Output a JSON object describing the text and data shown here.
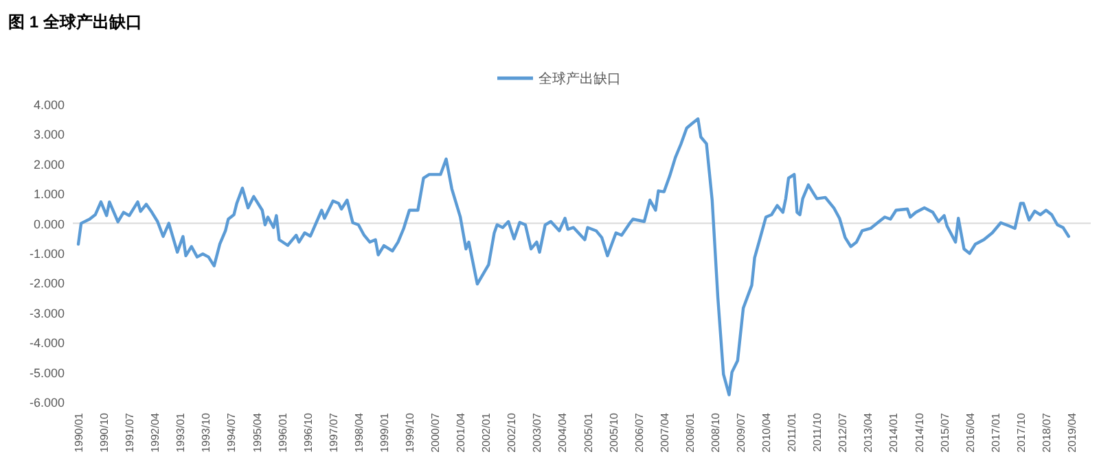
{
  "chart_data": {
    "type": "line",
    "title": "图 1  全球产出缺口",
    "legend": "top",
    "xlim": [
      "1990-01",
      "2019-04"
    ],
    "xticks": [
      {
        "value": "1990-01",
        "label": "1990/01"
      },
      {
        "value": "1990-10",
        "label": "1990/10"
      },
      {
        "value": "1991-07",
        "label": "1991/07"
      },
      {
        "value": "1992-04",
        "label": "1992/04"
      },
      {
        "value": "1993-01",
        "label": "1993/01"
      },
      {
        "value": "1993-10",
        "label": "1993/10"
      },
      {
        "value": "1994-07",
        "label": "1994/07"
      },
      {
        "value": "1995-04",
        "label": "1995/04"
      },
      {
        "value": "1996-01",
        "label": "1996/01"
      },
      {
        "value": "1996-10",
        "label": "1996/10"
      },
      {
        "value": "1997-07",
        "label": "1997/07"
      },
      {
        "value": "1998-04",
        "label": "1998/04"
      },
      {
        "value": "1999-01",
        "label": "1999/01"
      },
      {
        "value": "1999-10",
        "label": "1999/10"
      },
      {
        "value": "2000-07",
        "label": "2000/07"
      },
      {
        "value": "2001-04",
        "label": "2001/04"
      },
      {
        "value": "2002-01",
        "label": "2002/01"
      },
      {
        "value": "2002-10",
        "label": "2002/10"
      },
      {
        "value": "2003-07",
        "label": "2003/07"
      },
      {
        "value": "2004-04",
        "label": "2004/04"
      },
      {
        "value": "2005-01",
        "label": "2005/01"
      },
      {
        "value": "2005-10",
        "label": "2005/10"
      },
      {
        "value": "2006-07",
        "label": "2006/07"
      },
      {
        "value": "2007-04",
        "label": "2007/04"
      },
      {
        "value": "2008-01",
        "label": "2008/01"
      },
      {
        "value": "2008-10",
        "label": "2008/10"
      },
      {
        "value": "2009-07",
        "label": "2009/07"
      },
      {
        "value": "2010-04",
        "label": "2010/04"
      },
      {
        "value": "2011-01",
        "label": "2011/01"
      },
      {
        "value": "2011-10",
        "label": "2011/10"
      },
      {
        "value": "2012-07",
        "label": "2012/07"
      },
      {
        "value": "2013-04",
        "label": "2013/04"
      },
      {
        "value": "2014-01",
        "label": "2014/01"
      },
      {
        "value": "2014-10",
        "label": "2014/10"
      },
      {
        "value": "2015-07",
        "label": "2015/07"
      },
      {
        "value": "2016-04",
        "label": "2016/04"
      },
      {
        "value": "2017-01",
        "label": "2017/01"
      },
      {
        "value": "2017-10",
        "label": "2017/10"
      },
      {
        "value": "2018-07",
        "label": "2018/07"
      },
      {
        "value": "2019-04",
        "label": "2019/04"
      }
    ],
    "ylim": [
      -6,
      4
    ],
    "yticks": [
      {
        "value": 4,
        "label": "4.000"
      },
      {
        "value": 3,
        "label": "3.000"
      },
      {
        "value": 2,
        "label": "2.000"
      },
      {
        "value": 1,
        "label": "1.000"
      },
      {
        "value": 0,
        "label": "0.000"
      },
      {
        "value": -1,
        "label": "-1.000"
      },
      {
        "value": -2,
        "label": "-2.000"
      },
      {
        "value": -3,
        "label": "-3.000"
      },
      {
        "value": -4,
        "label": "-4.000"
      },
      {
        "value": -5,
        "label": "-5.000"
      },
      {
        "value": -6,
        "label": "-6.000"
      }
    ],
    "x": [
      "1990-01",
      "1990-02",
      "1990-05",
      "1990-07",
      "1990-09",
      "1990-11",
      "1990-12",
      "1991-03",
      "1991-05",
      "1991-07",
      "1991-10",
      "1991-11",
      "1992-01",
      "1992-03",
      "1992-05",
      "1992-07",
      "1992-09",
      "1992-12",
      "1993-02",
      "1993-03",
      "1993-05",
      "1993-07",
      "1993-09",
      "1993-11",
      "1994-01",
      "1994-03",
      "1994-05",
      "1994-06",
      "1994-08",
      "1994-09",
      "1994-11",
      "1995-01",
      "1995-03",
      "1995-06",
      "1995-07",
      "1995-08",
      "1995-10",
      "1995-11",
      "1995-12",
      "1996-03",
      "1996-06",
      "1996-07",
      "1996-09",
      "1996-11",
      "1997-03",
      "1997-04",
      "1997-07",
      "1997-09",
      "1997-10",
      "1997-12",
      "1998-02",
      "1998-04",
      "1998-06",
      "1998-08",
      "1998-10",
      "1998-11",
      "1999-01",
      "1999-04",
      "1999-06",
      "1999-08",
      "1999-10",
      "2000-01",
      "2000-03",
      "2000-05",
      "2000-09",
      "2000-11",
      "2001-01",
      "2001-04",
      "2001-06",
      "2001-07",
      "2001-10",
      "2002-02",
      "2002-04",
      "2002-05",
      "2002-07",
      "2002-09",
      "2002-11",
      "2003-01",
      "2003-03",
      "2003-05",
      "2003-07",
      "2003-08",
      "2003-10",
      "2003-12",
      "2004-03",
      "2004-05",
      "2004-06",
      "2004-08",
      "2004-12",
      "2005-01",
      "2005-04",
      "2005-06",
      "2005-08",
      "2005-11",
      "2006-01",
      "2006-04",
      "2006-05",
      "2006-09",
      "2006-11",
      "2007-01",
      "2007-02",
      "2007-04",
      "2007-06",
      "2007-08",
      "2007-10",
      "2007-12",
      "2008-02",
      "2008-04",
      "2008-05",
      "2008-07",
      "2008-09",
      "2008-11",
      "2009-01",
      "2009-03",
      "2009-04",
      "2009-06",
      "2009-08",
      "2009-11",
      "2009-12",
      "2010-02",
      "2010-04",
      "2010-06",
      "2010-08",
      "2010-10",
      "2010-11",
      "2010-12",
      "2011-02",
      "2011-03",
      "2011-04",
      "2011-05",
      "2011-07",
      "2011-09",
      "2011-10",
      "2012-01",
      "2012-04",
      "2012-06",
      "2012-08",
      "2012-10",
      "2012-12",
      "2013-02",
      "2013-05",
      "2013-08",
      "2013-10",
      "2013-12",
      "2014-02",
      "2014-06",
      "2014-07",
      "2014-09",
      "2014-12",
      "2015-03",
      "2015-05",
      "2015-07",
      "2015-08",
      "2015-11",
      "2015-12",
      "2016-02",
      "2016-04",
      "2016-06",
      "2016-09",
      "2016-12",
      "2017-03",
      "2017-06",
      "2017-08",
      "2017-10",
      "2017-11",
      "2018-01",
      "2018-03",
      "2018-05",
      "2018-07",
      "2018-09",
      "2018-11",
      "2019-01",
      "2019-03"
    ],
    "series": [
      {
        "name": "全球产出缺口",
        "color": "#5b9bd5",
        "values": [
          -0.7,
          0.0,
          0.14,
          0.29,
          0.72,
          0.26,
          0.72,
          0.05,
          0.37,
          0.26,
          0.72,
          0.4,
          0.64,
          0.37,
          0.06,
          -0.44,
          0.0,
          -0.97,
          -0.44,
          -1.09,
          -0.78,
          -1.13,
          -1.03,
          -1.13,
          -1.43,
          -0.7,
          -0.25,
          0.14,
          0.29,
          0.67,
          1.18,
          0.52,
          0.9,
          0.44,
          -0.05,
          0.21,
          -0.14,
          0.26,
          -0.55,
          -0.74,
          -0.4,
          -0.63,
          -0.32,
          -0.43,
          0.44,
          0.17,
          0.75,
          0.67,
          0.48,
          0.78,
          0.02,
          -0.05,
          -0.4,
          -0.63,
          -0.55,
          -1.06,
          -0.75,
          -0.93,
          -0.63,
          -0.17,
          0.44,
          0.44,
          1.52,
          1.64,
          1.64,
          2.16,
          1.16,
          0.21,
          -0.86,
          -0.63,
          -2.04,
          -1.39,
          -0.32,
          -0.05,
          -0.14,
          0.06,
          -0.52,
          0.03,
          -0.05,
          -0.86,
          -0.63,
          -0.97,
          -0.05,
          0.06,
          -0.25,
          0.17,
          -0.2,
          -0.14,
          -0.55,
          -0.14,
          -0.25,
          -0.48,
          -1.09,
          -0.32,
          -0.4,
          0.02,
          0.14,
          0.06,
          0.78,
          0.44,
          1.09,
          1.06,
          1.59,
          2.21,
          2.67,
          3.2,
          3.36,
          3.51,
          2.9,
          2.67,
          0.78,
          -2.47,
          -5.07,
          -5.76,
          -5.0,
          -4.61,
          -2.85,
          -2.08,
          -1.16,
          -0.48,
          0.21,
          0.29,
          0.6,
          0.37,
          0.83,
          1.52,
          1.64,
          0.37,
          0.29,
          0.83,
          1.29,
          0.98,
          0.83,
          0.87,
          0.52,
          0.17,
          -0.48,
          -0.78,
          -0.63,
          -0.25,
          -0.17,
          0.06,
          0.21,
          0.14,
          0.44,
          0.48,
          0.21,
          0.37,
          0.52,
          0.37,
          0.06,
          0.26,
          -0.09,
          -0.63,
          0.17,
          -0.86,
          -1.01,
          -0.7,
          -0.55,
          -0.32,
          0.02,
          -0.09,
          -0.17,
          0.67,
          0.67,
          0.11,
          0.41,
          0.29,
          0.44,
          0.29,
          -0.05,
          -0.14,
          -0.44
        ]
      }
    ]
  }
}
